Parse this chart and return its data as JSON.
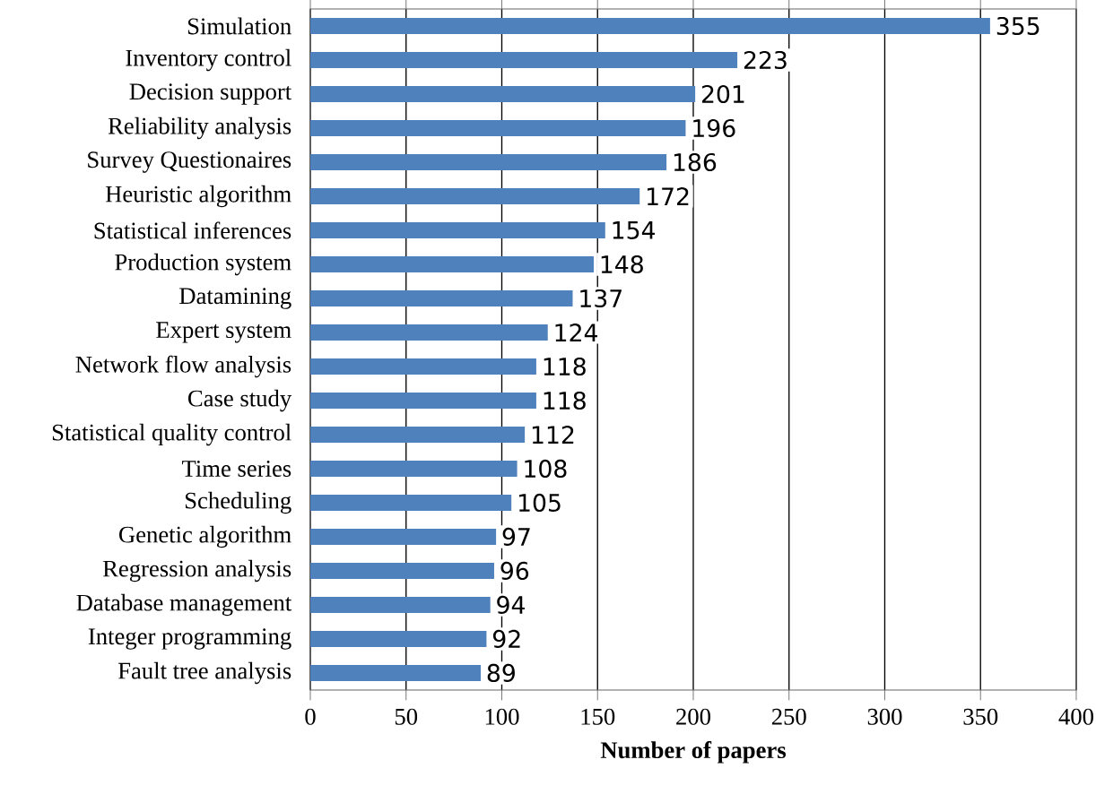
{
  "chart_data": {
    "type": "bar",
    "orientation": "horizontal",
    "xlabel": "Number of papers",
    "categories": [
      "Simulation",
      "Inventory control",
      "Decision support",
      "Reliability analysis",
      "Survey Questionaires",
      "Heuristic algorithm",
      "Statistical inferences",
      "Production system",
      "Datamining",
      "Expert system",
      "Network flow analysis",
      "Case study",
      "Statistical quality control",
      "Time series",
      "Scheduling",
      "Genetic algorithm",
      "Regression analysis",
      "Database management",
      "Integer programming",
      "Fault tree analysis"
    ],
    "values": [
      355,
      223,
      201,
      196,
      186,
      172,
      154,
      148,
      137,
      124,
      118,
      118,
      112,
      108,
      105,
      97,
      96,
      94,
      92,
      89
    ],
    "color": "#4f81bd",
    "xlim": [
      0,
      400
    ],
    "xticks": [
      0,
      50,
      100,
      150,
      200,
      250,
      300,
      350,
      400
    ],
    "grid": "x",
    "data_labels": true
  }
}
